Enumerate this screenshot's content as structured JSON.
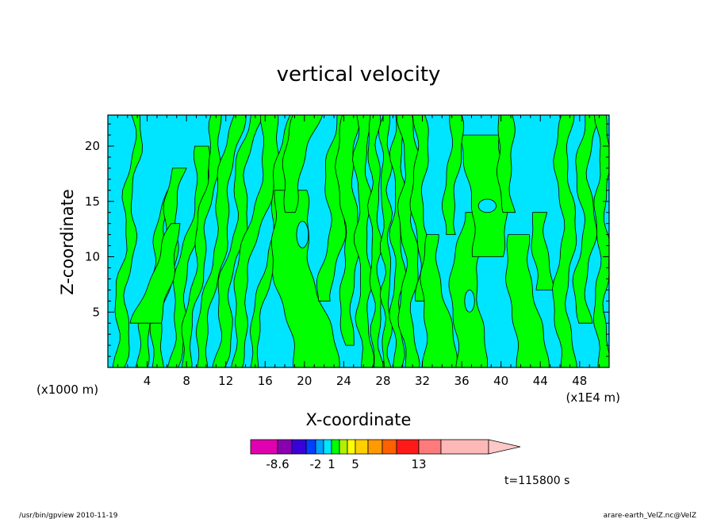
{
  "chart_data": {
    "type": "heatmap",
    "title": "vertical velocity",
    "xlabel": "X-coordinate",
    "ylabel": "Z-coordinate",
    "x_unit_left": "(x1000 m)",
    "x_unit_right": "(x1E4 m)",
    "xticks": [
      "4",
      "8",
      "12",
      "16",
      "20",
      "24",
      "28",
      "32",
      "36",
      "40",
      "44",
      "48"
    ],
    "xtick_values": [
      4,
      8,
      12,
      16,
      20,
      24,
      28,
      32,
      36,
      40,
      44,
      48
    ],
    "yticks": [
      "5",
      "10",
      "15",
      "20"
    ],
    "ytick_values": [
      5,
      10,
      15,
      20
    ],
    "xlim": [
      0,
      51
    ],
    "ylim": [
      0,
      22.8
    ],
    "colors": {
      "positive": "#00ff00",
      "negative": "#00e5ff",
      "contour": "#000000",
      "frame": "#000000"
    },
    "colorbar": {
      "labels": [
        "-8.6",
        "-2",
        "1",
        "5",
        "13"
      ],
      "colors": [
        "#e000b0",
        "#8a00b0",
        "#3a00d8",
        "#0040ff",
        "#00a0ff",
        "#00e5ff",
        "#00ff00",
        "#b0f000",
        "#ffff00",
        "#ffd000",
        "#ff9a00",
        "#ff6000",
        "#ff1a1a",
        "#ff7a7a",
        "#ffb8b8"
      ],
      "arrow_color": "#ffc8c8"
    },
    "time_label": "t=115800 s",
    "footer_left": "/usr/bin/gpview   2010-11-19",
    "footer_right": "arare-earth_VelZ.nc@VelZ"
  }
}
